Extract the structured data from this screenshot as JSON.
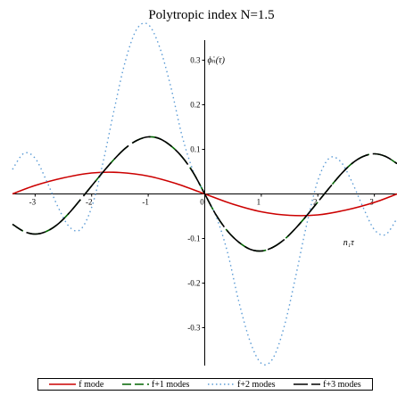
{
  "chart_data": {
    "type": "line",
    "title": "Polytropic index N=1.5",
    "xlabel": "n₁τ",
    "ylabel": "ϕ̇ₙ(τ)",
    "xlim": [
      -3.4,
      3.4
    ],
    "ylim": [
      -0.385,
      0.385
    ],
    "x_ticks": [
      -3,
      -2,
      -1,
      0,
      1,
      2,
      3
    ],
    "x_tick_labels": [
      "-3",
      "-2",
      "-1",
      "0",
      "1",
      "2",
      "3"
    ],
    "y_ticks": [
      -0.3,
      -0.2,
      -0.1,
      0.1,
      0.2,
      0.3
    ],
    "y_tick_labels": [
      "-0.3",
      "-0.2",
      "-0.1",
      "0.1",
      "0.2",
      "0.3"
    ],
    "grid": false,
    "legend_position": "bottom",
    "series": [
      {
        "name": "f mode",
        "color": "#cc0000",
        "style": "solid",
        "x": [
          -3.4,
          -3.0,
          -2.5,
          -2.0,
          -1.5,
          -1.0,
          -0.5,
          0.0,
          0.5,
          1.0,
          1.5,
          2.0,
          2.5,
          3.0,
          3.4
        ],
        "y": [
          0.0,
          0.019,
          0.036,
          0.047,
          0.048,
          0.04,
          0.023,
          0.0,
          -0.023,
          -0.04,
          -0.048,
          -0.047,
          -0.036,
          -0.019,
          0.0
        ]
      },
      {
        "name": "f+1 modes",
        "color": "#006400",
        "style": "dash",
        "x": [
          -3.4,
          -3.2,
          -3.0,
          -2.8,
          -2.6,
          -2.4,
          -2.2,
          -2.0,
          -1.8,
          -1.6,
          -1.4,
          -1.2,
          -1.0,
          -0.8,
          -0.6,
          -0.4,
          -0.2,
          0.0,
          0.2,
          0.4,
          0.6,
          0.8,
          1.0,
          1.2,
          1.4,
          1.6,
          1.8,
          2.0,
          2.2,
          2.4,
          2.6,
          2.8,
          3.0,
          3.2,
          3.4
        ],
        "y": [
          -0.068,
          -0.084,
          -0.09,
          -0.084,
          -0.068,
          -0.043,
          -0.013,
          0.018,
          0.049,
          0.078,
          0.103,
          0.12,
          0.128,
          0.124,
          0.108,
          0.083,
          0.047,
          0.0,
          -0.047,
          -0.083,
          -0.108,
          -0.124,
          -0.128,
          -0.12,
          -0.103,
          -0.078,
          -0.049,
          -0.018,
          0.013,
          0.043,
          0.068,
          0.084,
          0.09,
          0.084,
          0.068
        ]
      },
      {
        "name": "f+2  modes",
        "color": "#5b9bd5",
        "style": "dot",
        "x": [
          -3.4,
          -3.2,
          -3.0,
          -2.8,
          -2.6,
          -2.4,
          -2.2,
          -2.0,
          -1.8,
          -1.6,
          -1.4,
          -1.2,
          -1.0,
          -0.8,
          -0.6,
          -0.4,
          -0.2,
          0.0,
          0.2,
          0.4,
          0.6,
          0.8,
          1.0,
          1.2,
          1.4,
          1.6,
          1.8,
          2.0,
          2.2,
          2.4,
          2.6,
          2.8,
          3.0,
          3.2,
          3.4
        ],
        "y": [
          0.055,
          0.091,
          0.08,
          0.03,
          -0.028,
          -0.073,
          -0.08,
          -0.03,
          0.07,
          0.19,
          0.3,
          0.37,
          0.38,
          0.33,
          0.24,
          0.13,
          0.05,
          0.0,
          -0.05,
          -0.13,
          -0.24,
          -0.33,
          -0.38,
          -0.37,
          -0.3,
          -0.19,
          -0.07,
          0.03,
          0.08,
          0.073,
          0.028,
          -0.03,
          -0.08,
          -0.091,
          -0.055
        ]
      },
      {
        "name": "f+3  modes",
        "color": "#000000",
        "style": "longdash",
        "x": [
          -3.4,
          -3.2,
          -3.0,
          -2.8,
          -2.6,
          -2.4,
          -2.2,
          -2.0,
          -1.8,
          -1.6,
          -1.4,
          -1.2,
          -1.0,
          -0.8,
          -0.6,
          -0.4,
          -0.2,
          0.0,
          0.2,
          0.4,
          0.6,
          0.8,
          1.0,
          1.2,
          1.4,
          1.6,
          1.8,
          2.0,
          2.2,
          2.4,
          2.6,
          2.8,
          3.0,
          3.2,
          3.4
        ],
        "y": [
          -0.068,
          -0.084,
          -0.09,
          -0.084,
          -0.068,
          -0.043,
          -0.013,
          0.018,
          0.049,
          0.078,
          0.103,
          0.12,
          0.128,
          0.124,
          0.108,
          0.083,
          0.047,
          0.0,
          -0.047,
          -0.083,
          -0.108,
          -0.124,
          -0.128,
          -0.12,
          -0.103,
          -0.078,
          -0.049,
          -0.018,
          0.013,
          0.043,
          0.068,
          0.084,
          0.09,
          0.084,
          0.068
        ]
      }
    ]
  }
}
